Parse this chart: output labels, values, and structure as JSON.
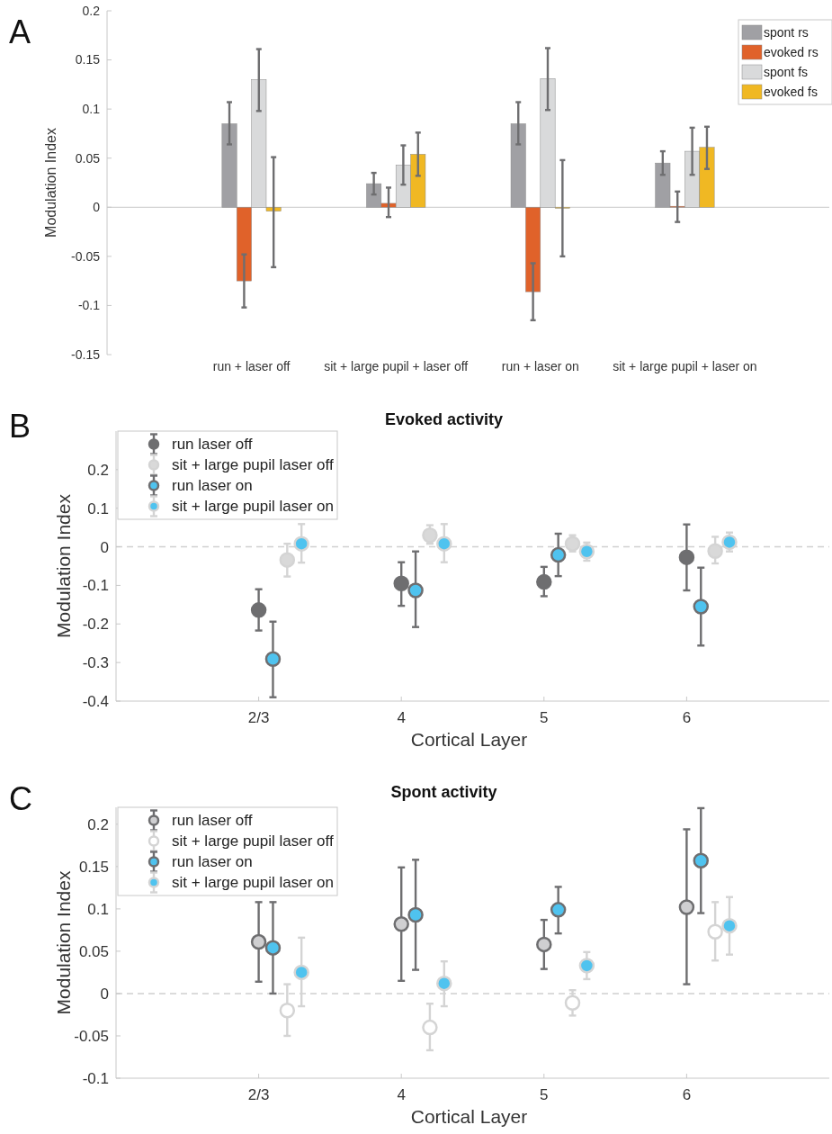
{
  "chart_data": [
    {
      "type": "bar",
      "ylabel": "Modulation Index",
      "annotations": [
        "A"
      ],
      "categories": [
        "run + laser off",
        "sit + large pupil + laser off",
        "run + laser on",
        "sit + large pupil + laser on"
      ],
      "series": [
        {
          "name": "spont rs",
          "color": "#a0a0a4",
          "values": [
            0.085,
            0.024,
            0.085,
            0.045
          ],
          "errors": [
            [
              0.064,
              0.107
            ],
            [
              0.013,
              0.035
            ],
            [
              0.064,
              0.107
            ],
            [
              0.033,
              0.057
            ]
          ]
        },
        {
          "name": "evoked rs",
          "color": "#e0622a",
          "values": [
            -0.075,
            0.004,
            -0.086,
            0.001
          ],
          "errors": [
            [
              -0.102,
              -0.048
            ],
            [
              -0.01,
              0.02
            ],
            [
              -0.115,
              -0.057
            ],
            [
              -0.015,
              0.016
            ]
          ]
        },
        {
          "name": "spont fs",
          "color": "#d9dadb",
          "values": [
            0.13,
            0.043,
            0.131,
            0.057
          ],
          "errors": [
            [
              0.098,
              0.161
            ],
            [
              0.023,
              0.063
            ],
            [
              0.099,
              0.162
            ],
            [
              0.033,
              0.081
            ]
          ]
        },
        {
          "name": "evoked fs",
          "color": "#f0b823",
          "values": [
            -0.004,
            0.054,
            -0.001,
            0.061
          ],
          "errors": [
            [
              -0.061,
              0.051
            ],
            [
              0.032,
              0.076
            ],
            [
              -0.05,
              0.048
            ],
            [
              0.039,
              0.082
            ]
          ]
        }
      ],
      "ylim": [
        -0.15,
        0.2
      ],
      "yticks": [
        -0.15,
        -0.1,
        -0.05,
        0,
        0.05,
        0.1,
        0.15,
        0.2
      ],
      "legend": "top right"
    },
    {
      "type": "scatter",
      "title": "Evoked activity",
      "xlabel": "Cortical Layer",
      "ylabel": "Modulation Index",
      "annotations": [
        "B"
      ],
      "series": [
        {
          "name": "run laser off",
          "color": "#6e6e70",
          "values": [
            -0.164,
            -0.095,
            -0.091,
            -0.027
          ],
          "errors": [
            [
              -0.217,
              -0.11
            ],
            [
              -0.153,
              -0.04
            ],
            [
              -0.128,
              -0.052
            ],
            [
              -0.113,
              0.058
            ]
          ]
        },
        {
          "name": "sit + large pupil laser off",
          "color": "#d9d9d9",
          "values": [
            -0.034,
            0.03,
            0.008,
            -0.011
          ],
          "errors": [
            [
              -0.077,
              0.008
            ],
            [
              0.008,
              0.056
            ],
            [
              -0.012,
              0.03
            ],
            [
              -0.043,
              0.026
            ]
          ]
        },
        {
          "name": "run laser on",
          "color": "#4fc3ef",
          "values": [
            -0.291,
            -0.113,
            -0.021,
            -0.155
          ],
          "errors": [
            [
              -0.39,
              -0.194
            ],
            [
              -0.208,
              -0.012
            ],
            [
              -0.076,
              0.034
            ],
            [
              -0.256,
              -0.054
            ]
          ]
        },
        {
          "name": "sit + large pupil laser on",
          "color": "#4fc3ef",
          "values": [
            0.008,
            0.008,
            -0.012,
            0.012
          ],
          "errors": [
            [
              -0.041,
              0.059
            ],
            [
              -0.04,
              0.059
            ],
            [
              -0.036,
              0.011
            ],
            [
              -0.012,
              0.037
            ]
          ]
        }
      ],
      "categories": [
        "2/3",
        "4",
        "5",
        "6"
      ],
      "ylim": [
        -0.4,
        0.3
      ],
      "yticks": [
        -0.4,
        -0.3,
        -0.2,
        -0.1,
        0,
        0.1,
        0.2
      ],
      "ref_lines": [
        {
          "axis": "y",
          "value": 0,
          "color": "#d0d0d0",
          "line_style": "dashed"
        }
      ],
      "marker": "circle",
      "legend": "top left"
    },
    {
      "type": "scatter",
      "title": "Spont activity",
      "xlabel": "Cortical Layer",
      "ylabel": "Modulation Index",
      "annotations": [
        "C"
      ],
      "series": [
        {
          "name": "run laser off",
          "color": "#cfcfd1",
          "values": [
            0.061,
            0.082,
            0.058,
            0.102
          ],
          "errors": [
            [
              0.014,
              0.108
            ],
            [
              0.015,
              0.149
            ],
            [
              0.029,
              0.087
            ],
            [
              0.011,
              0.194
            ]
          ]
        },
        {
          "name": "sit + large pupil laser off",
          "color": "#ffffff",
          "values": [
            -0.02,
            -0.04,
            -0.011,
            0.073
          ],
          "errors": [
            [
              -0.05,
              0.011
            ],
            [
              -0.067,
              -0.012
            ],
            [
              -0.026,
              0.004
            ],
            [
              0.039,
              0.108
            ]
          ]
        },
        {
          "name": "run laser on",
          "color": "#4fc3ef",
          "values": [
            0.054,
            0.093,
            0.099,
            0.157
          ],
          "errors": [
            [
              0,
              0.108
            ],
            [
              0.028,
              0.158
            ],
            [
              0.071,
              0.126
            ],
            [
              0.095,
              0.219
            ]
          ]
        },
        {
          "name": "sit + large pupil laser on",
          "color": "#4fc3ef",
          "values": [
            0.025,
            0.012,
            0.033,
            0.08
          ],
          "errors": [
            [
              -0.015,
              0.066
            ],
            [
              -0.015,
              0.038
            ],
            [
              0.017,
              0.049
            ],
            [
              0.046,
              0.114
            ]
          ]
        }
      ],
      "categories": [
        "2/3",
        "4",
        "5",
        "6"
      ],
      "ylim": [
        -0.1,
        0.22
      ],
      "yticks": [
        -0.1,
        -0.05,
        0,
        0.05,
        0.1,
        0.15,
        0.2
      ],
      "ref_lines": [
        {
          "axis": "y",
          "value": 0,
          "color": "#d0d0d0",
          "line_style": "dashed"
        }
      ],
      "marker": "circle",
      "legend": "top left"
    }
  ]
}
